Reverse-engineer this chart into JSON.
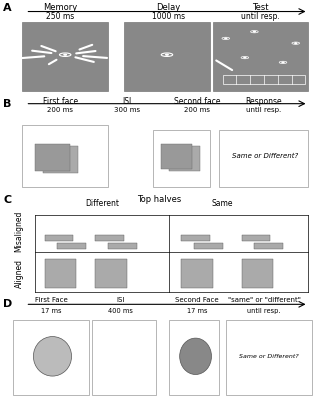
{
  "panel_A": {
    "label": "A",
    "phases": [
      "Memory",
      "Delay",
      "Test"
    ],
    "times": [
      "250 ms",
      "1000 ms",
      "until resp."
    ],
    "bg_color": "#888888"
  },
  "panel_B": {
    "label": "B",
    "phases": [
      "First face",
      "ISI",
      "Second face",
      "Response"
    ],
    "times": [
      "200 ms",
      "300 ms",
      "200 ms",
      "until resp."
    ],
    "response_text": "Same or Different?"
  },
  "panel_C": {
    "label": "C",
    "title": "Top halves",
    "col_labels": [
      "Different",
      "Same"
    ],
    "row_labels": [
      "Misaligned",
      "Aligned"
    ]
  },
  "panel_D": {
    "label": "D",
    "phases": [
      "First Face",
      "ISI",
      "Second Face",
      "\"same\" or \"different\""
    ],
    "times": [
      "17 ms",
      "400 ms",
      "17 ms",
      "until resp."
    ],
    "response_text": "Same or Different?"
  },
  "figure_bg": "#ffffff"
}
